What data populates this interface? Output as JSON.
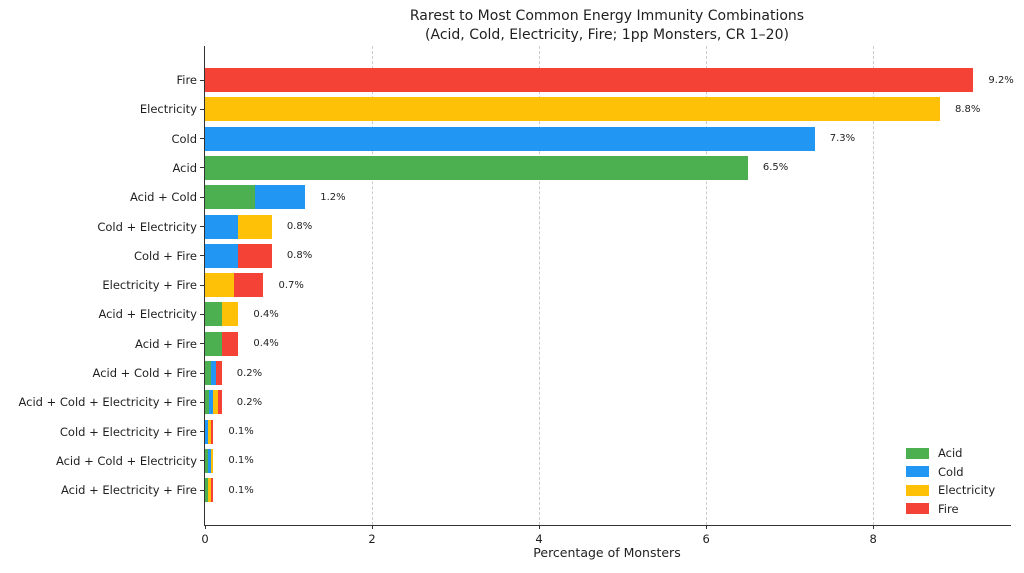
{
  "chart_data": {
    "type": "bar",
    "orientation": "horizontal",
    "title": "Rarest to Most Common Energy Immunity Combinations",
    "subtitle": "(Acid, Cold, Electricity, Fire; 1pp Monsters, CR 1–20)",
    "xlabel": "Percentage of Monsters",
    "ylabel": "",
    "xlim": [
      0,
      9.65
    ],
    "xticks": [
      0,
      2,
      4,
      6,
      8
    ],
    "gridline_ticks": [
      2,
      4,
      6,
      8
    ],
    "grid": "vertical dashed",
    "background": "#ffffff",
    "text_color": "#1f1f1f",
    "spine_color": "#333333",
    "grid_color": "#cccccc",
    "palette": {
      "Acid": "#4caf50",
      "Cold": "#2196f3",
      "Electricity": "#ffc107",
      "Fire": "#f44336"
    },
    "legend": {
      "position": "lower-right",
      "entries": [
        {
          "label": "Acid",
          "color": "#4caf50"
        },
        {
          "label": "Cold",
          "color": "#2196f3"
        },
        {
          "label": "Electricity",
          "color": "#ffc107"
        },
        {
          "label": "Fire",
          "color": "#f44336"
        }
      ]
    },
    "bars": [
      {
        "label": "Fire",
        "total": 9.2,
        "pct": "9.2%",
        "segments": [
          {
            "element": "Fire",
            "value": 9.2
          }
        ]
      },
      {
        "label": "Electricity",
        "total": 8.8,
        "pct": "8.8%",
        "segments": [
          {
            "element": "Electricity",
            "value": 8.8
          }
        ]
      },
      {
        "label": "Cold",
        "total": 7.3,
        "pct": "7.3%",
        "segments": [
          {
            "element": "Cold",
            "value": 7.3
          }
        ]
      },
      {
        "label": "Acid",
        "total": 6.5,
        "pct": "6.5%",
        "segments": [
          {
            "element": "Acid",
            "value": 6.5
          }
        ]
      },
      {
        "label": "Acid + Cold",
        "total": 1.2,
        "pct": "1.2%",
        "segments": [
          {
            "element": "Acid",
            "value": 0.6
          },
          {
            "element": "Cold",
            "value": 0.6
          }
        ]
      },
      {
        "label": "Cold + Electricity",
        "total": 0.8,
        "pct": "0.8%",
        "segments": [
          {
            "element": "Cold",
            "value": 0.4
          },
          {
            "element": "Electricity",
            "value": 0.4
          }
        ]
      },
      {
        "label": "Cold + Fire",
        "total": 0.8,
        "pct": "0.8%",
        "segments": [
          {
            "element": "Cold",
            "value": 0.4
          },
          {
            "element": "Fire",
            "value": 0.4
          }
        ]
      },
      {
        "label": "Electricity + Fire",
        "total": 0.7,
        "pct": "0.7%",
        "segments": [
          {
            "element": "Electricity",
            "value": 0.35
          },
          {
            "element": "Fire",
            "value": 0.35
          }
        ]
      },
      {
        "label": "Acid + Electricity",
        "total": 0.4,
        "pct": "0.4%",
        "segments": [
          {
            "element": "Acid",
            "value": 0.2
          },
          {
            "element": "Electricity",
            "value": 0.2
          }
        ]
      },
      {
        "label": "Acid + Fire",
        "total": 0.4,
        "pct": "0.4%",
        "segments": [
          {
            "element": "Acid",
            "value": 0.2
          },
          {
            "element": "Fire",
            "value": 0.2
          }
        ]
      },
      {
        "label": "Acid + Cold + Fire",
        "total": 0.2,
        "pct": "0.2%",
        "segments": [
          {
            "element": "Acid",
            "value": 0.0667
          },
          {
            "element": "Cold",
            "value": 0.0667
          },
          {
            "element": "Fire",
            "value": 0.0667
          }
        ]
      },
      {
        "label": "Acid + Cold + Electricity + Fire",
        "total": 0.2,
        "pct": "0.2%",
        "segments": [
          {
            "element": "Acid",
            "value": 0.05
          },
          {
            "element": "Cold",
            "value": 0.05
          },
          {
            "element": "Electricity",
            "value": 0.05
          },
          {
            "element": "Fire",
            "value": 0.05
          }
        ]
      },
      {
        "label": "Cold + Electricity + Fire",
        "total": 0.1,
        "pct": "0.1%",
        "segments": [
          {
            "element": "Cold",
            "value": 0.0333
          },
          {
            "element": "Electricity",
            "value": 0.0333
          },
          {
            "element": "Fire",
            "value": 0.0333
          }
        ]
      },
      {
        "label": "Acid + Cold + Electricity",
        "total": 0.1,
        "pct": "0.1%",
        "segments": [
          {
            "element": "Acid",
            "value": 0.0333
          },
          {
            "element": "Cold",
            "value": 0.0333
          },
          {
            "element": "Electricity",
            "value": 0.0333
          }
        ]
      },
      {
        "label": "Acid + Electricity + Fire",
        "total": 0.1,
        "pct": "0.1%",
        "segments": [
          {
            "element": "Acid",
            "value": 0.0333
          },
          {
            "element": "Electricity",
            "value": 0.0333
          },
          {
            "element": "Fire",
            "value": 0.0333
          }
        ]
      }
    ]
  }
}
